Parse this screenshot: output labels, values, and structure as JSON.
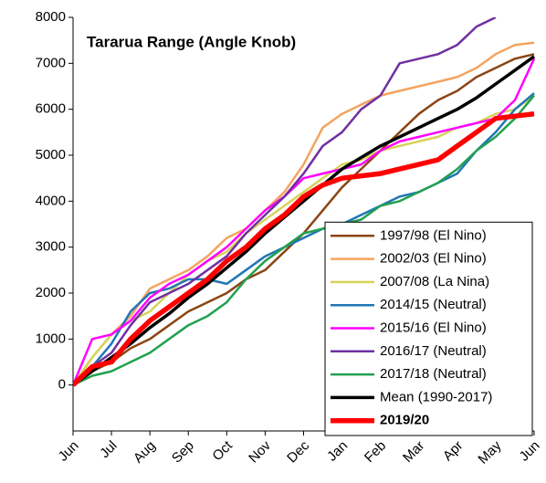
{
  "chart_data": {
    "type": "line",
    "title": "Tararua Range (Angle Knob)",
    "categories": [
      "Jun",
      null,
      "Jul",
      null,
      "Aug",
      null,
      "Sep",
      null,
      "Oct",
      null,
      "Nov",
      null,
      "Dec",
      null,
      "Jan",
      null,
      "Feb",
      null,
      "Mar",
      null,
      "Apr",
      null,
      "May",
      null,
      "Jun"
    ],
    "ylim": [
      -1000,
      8000
    ],
    "yticks": [
      0,
      1000,
      2000,
      3000,
      4000,
      5000,
      6000,
      7000,
      8000
    ],
    "legend": "lower right",
    "series": [
      {
        "name": "1997/98 (El Nino)",
        "color": "#8b4513",
        "values": [
          0,
          300,
          500,
          800,
          1000,
          1300,
          1600,
          1800,
          2000,
          2300,
          2500,
          2900,
          3300,
          3800,
          4300,
          4700,
          5100,
          5500,
          5900,
          6200,
          6400,
          6700,
          6900,
          7100,
          7200
        ]
      },
      {
        "name": "2002/03 (El Nino)",
        "color": "#f4a460",
        "values": [
          0,
          600,
          1100,
          1500,
          2100,
          2300,
          2500,
          2800,
          3200,
          3400,
          3800,
          4200,
          4800,
          5600,
          5900,
          6100,
          6300,
          6400,
          6500,
          6600,
          6700,
          6900,
          7200,
          7400,
          7450
        ]
      },
      {
        "name": "2007/08 (La Nina)",
        "color": "#d4d45a",
        "values": [
          0,
          600,
          1100,
          1400,
          1600,
          2000,
          2400,
          2700,
          2900,
          3300,
          3600,
          3900,
          4200,
          4500,
          4800,
          4900,
          5100,
          5200,
          5300,
          5400,
          5600,
          5700,
          5900,
          6000,
          6300
        ]
      },
      {
        "name": "2014/15 (Neutral)",
        "color": "#1f77b4",
        "values": [
          0,
          400,
          900,
          1600,
          2000,
          2100,
          2300,
          2300,
          2200,
          2500,
          2800,
          3000,
          3200,
          3400,
          3500,
          3700,
          3900,
          4100,
          4200,
          4400,
          4600,
          5100,
          5500,
          6000,
          6350
        ]
      },
      {
        "name": "2015/16 (El Nino)",
        "color": "#ff00ff",
        "values": [
          0,
          1000,
          1100,
          1400,
          1900,
          2200,
          2400,
          2700,
          3000,
          3400,
          3800,
          4100,
          4500,
          4600,
          4700,
          4800,
          5100,
          5300,
          5400,
          5500,
          5600,
          5700,
          5800,
          6200,
          7100
        ]
      },
      {
        "name": "2016/17 (Neutral)",
        "color": "#7030a0",
        "values": [
          0,
          400,
          700,
          1300,
          1800,
          2000,
          2200,
          2500,
          2800,
          3300,
          3700,
          4100,
          4600,
          5200,
          5500,
          6000,
          6300,
          7000,
          7100,
          7200,
          7400,
          7800,
          8000,
          null,
          null
        ]
      },
      {
        "name": "2017/18 (Neutral)",
        "color": "#22a050",
        "values": [
          0,
          200,
          300,
          500,
          700,
          1000,
          1300,
          1500,
          1800,
          2300,
          2700,
          3000,
          3300,
          3400,
          3500,
          3600,
          3900,
          4000,
          4200,
          4400,
          4700,
          5100,
          5400,
          5800,
          6300
        ]
      },
      {
        "name": "Mean (1990-2017)",
        "color": "#000000",
        "values": [
          0,
          300,
          600,
          900,
          1250,
          1550,
          1900,
          2200,
          2550,
          2900,
          3300,
          3650,
          4000,
          4350,
          4700,
          4950,
          5200,
          5400,
          5600,
          5800,
          6000,
          6250,
          6550,
          6850,
          7150
        ]
      },
      {
        "name": "2019/20",
        "color": "#ff0000",
        "values": [
          0,
          400,
          500,
          1000,
          1400,
          1700,
          2000,
          2300,
          2700,
          3000,
          3400,
          3700,
          4100,
          4350,
          4500,
          4550,
          4600,
          4700,
          4800,
          4900,
          5200,
          5500,
          5800,
          5850,
          5900
        ]
      }
    ]
  }
}
